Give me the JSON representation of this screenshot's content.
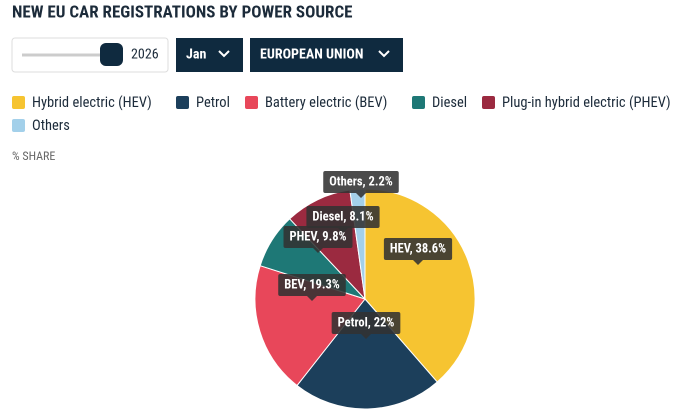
{
  "controls": {
    "year": 2026,
    "month": "Jan",
    "region": "EUROPEAN UNION"
  },
  "chart_data": {
    "type": "pie",
    "title": "NEW EU CAR REGISTRATIONS BY POWER SOURCE",
    "subtitle": "% SHARE",
    "series": [
      {
        "name": "Hybrid electric (HEV)",
        "color": "#f6c431",
        "values": [
          38.6
        ],
        "value_labels": [
          "HEV, 38.6%"
        ]
      },
      {
        "name": "Petrol",
        "color": "#1c3f5b",
        "values": [
          22
        ],
        "value_labels": [
          "Petrol, 22%"
        ]
      },
      {
        "name": "Battery electric (BEV)",
        "color": "#e8475a",
        "values": [
          19.3
        ],
        "value_labels": [
          "BEV, 19.3%"
        ]
      },
      {
        "name": "Diesel",
        "color": "#1e7876",
        "values": [
          8.1
        ],
        "value_labels": [
          "Diesel, 8.1%"
        ]
      },
      {
        "name": "Plug-in hybrid electric (PHEV)",
        "color": "#9b2a40",
        "values": [
          9.8
        ],
        "value_labels": [
          "PHEV, 9.8%"
        ]
      },
      {
        "name": "Others",
        "color": "#a3d0ea",
        "values": [
          2.2
        ],
        "value_labels": [
          "Others, 2.2%"
        ]
      }
    ]
  }
}
